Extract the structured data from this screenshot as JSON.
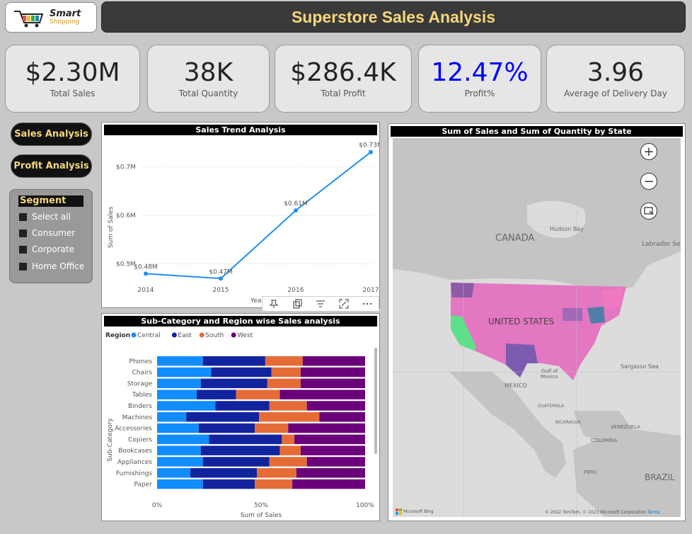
{
  "logo": {
    "line1": "Smart",
    "line2": "Shopping"
  },
  "header": {
    "title": "Superstore Sales Analysis"
  },
  "kpis": [
    {
      "value": "$2.30M",
      "label": "Total Sales"
    },
    {
      "value": "38K",
      "label": "Total Quantity"
    },
    {
      "value": "$286.4K",
      "label": "Total Profit"
    },
    {
      "value": "12.47%",
      "label": "Profit%",
      "color": "#0000ff"
    },
    {
      "value": "3.96",
      "label": "Average of Delivery Day"
    }
  ],
  "nav": {
    "sales": "Sales Analysis",
    "profit": "Profit Analysis"
  },
  "segment": {
    "title": "Segment",
    "items": [
      "Select all",
      "Consumer",
      "Corporate",
      "Home Office"
    ]
  },
  "trend": {
    "title": "Sales Trend Analysis",
    "ylabel": "Sum of Sales",
    "xlabel_partial": "Yea"
  },
  "map": {
    "title": "Sum of Sales and Sum of Quantity by State",
    "labels": {
      "canada": "CANADA",
      "hudson": "Hudson Bay",
      "labrador": "Labrador Se",
      "us": "UNITED STATES",
      "mexico": "MEXICO",
      "gulf1": "Gulf of",
      "gulf2": "Mexico",
      "sargasso": "Sargasso Sea",
      "guatemala": "GUATEMALA",
      "nicaragua": "NICARAGUA",
      "venezuela": "VENEZUELA",
      "colombia": "COLOMBIA",
      "peru": "PERU",
      "brazil": "BRAZIL"
    },
    "bing": "Microsoft Bing",
    "copyright": "© 2022 TomTom, © 2023 Microsoft Corporation",
    "terms": "Terms"
  },
  "bar": {
    "title": "Sub-Category and Region wise Sales analysis",
    "legend_title": "Region",
    "ylabel": "Sub-Category",
    "xlabel": "Sum of Sales",
    "xticks": [
      "0%",
      "50%",
      "100%"
    ]
  },
  "chart_data": [
    {
      "type": "line",
      "title": "Sales Trend Analysis",
      "x": [
        "2014",
        "2015",
        "2016",
        "2017"
      ],
      "series": [
        {
          "values": [
            0.48,
            0.47,
            0.61,
            0.73
          ]
        }
      ],
      "data_labels": [
        "$0.48M",
        "$0.47M",
        "$0.61M",
        "$0.73M"
      ],
      "yticks": [
        "$0.5M",
        "$0.6M",
        "$0.7M"
      ],
      "ylim": [
        0.45,
        0.75
      ],
      "ylabel": "Sum of Sales",
      "color": "#1f8ff0"
    },
    {
      "type": "bar",
      "stacked_percent": true,
      "title": "Sub-Category and Region wise Sales analysis",
      "categories": [
        "Phones",
        "Chairs",
        "Storage",
        "Tables",
        "Binders",
        "Machines",
        "Accessories",
        "Copiers",
        "Bookcases",
        "Appliances",
        "Furnishings",
        "Paper"
      ],
      "series": [
        {
          "name": "Central",
          "color": "#118dff",
          "values": [
            22,
            26,
            21,
            19,
            28,
            14,
            20,
            25,
            21,
            22,
            16,
            22
          ]
        },
        {
          "name": "East",
          "color": "#12239e",
          "values": [
            30,
            29,
            32,
            19,
            26,
            35,
            27,
            35,
            38,
            32,
            32,
            25
          ]
        },
        {
          "name": "South",
          "color": "#e66c37",
          "values": [
            18,
            14,
            16,
            21,
            18,
            29,
            16,
            6,
            10,
            18,
            19,
            18
          ]
        },
        {
          "name": "West",
          "color": "#6b007b",
          "values": [
            30,
            31,
            31,
            41,
            28,
            22,
            37,
            34,
            31,
            28,
            33,
            35
          ]
        }
      ],
      "xlabel": "Sum of Sales",
      "ylabel": "Sub-Category",
      "legend": "top-left"
    }
  ]
}
